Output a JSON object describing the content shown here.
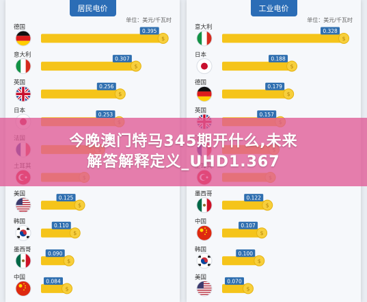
{
  "chart_data": [
    {
      "type": "bar",
      "title": "居民电价",
      "unit": "单位：美元/千瓦时",
      "categories": [
        "德国",
        "意大利",
        "英国",
        "日本",
        "法国",
        "土耳其",
        "美国",
        "韩国",
        "墨西哥",
        "中国"
      ],
      "flags": [
        "flag-germany",
        "flag-italy",
        "flag-uk",
        "flag-japan",
        "flag-france",
        "flag-turkey",
        "flag-usa",
        "flag-korea",
        "flag-mexico",
        "flag-china"
      ],
      "values": [
        0.395,
        0.307,
        0.256,
        0.253,
        0.19,
        0.14,
        0.125,
        0.11,
        0.09,
        0.084
      ],
      "labels": [
        "0.395",
        "0.307",
        "0.256",
        "0.253",
        "",
        "",
        "0.125",
        "0.110",
        "0.090",
        "0.084"
      ],
      "xlim": [
        0,
        0.42
      ]
    },
    {
      "type": "bar",
      "title": "工业电价",
      "unit": "单位：美元/千瓦时",
      "categories": [
        "意大利",
        "日本",
        "德国",
        "英国",
        "法国",
        "土耳其",
        "墨西哥",
        "中国",
        "韩国",
        "美国"
      ],
      "flags": [
        "flag-italy",
        "flag-japan",
        "flag-germany",
        "flag-uk",
        "flag-france",
        "flag-turkey",
        "flag-mexico",
        "flag-china",
        "flag-korea",
        "flag-usa"
      ],
      "values": [
        0.328,
        0.188,
        0.179,
        0.157,
        0.14,
        0.13,
        0.122,
        0.107,
        0.1,
        0.07
      ],
      "labels": [
        "0.328",
        "0.188",
        "0.179",
        "0.157",
        "",
        "",
        "0.122",
        "0.107",
        "0.100",
        "0.070"
      ],
      "xlim": [
        0,
        0.35
      ]
    }
  ],
  "overlay": {
    "line1": "今晚澳门特马345期开什么,未来",
    "line2": "解答解释定义_UHD1.367"
  },
  "colors": {
    "bar": "#f5c41a",
    "coin": "#f7cf3c",
    "tab": "#2b6db6",
    "label": "#2f6fb0",
    "overlay": "#e05a96"
  }
}
